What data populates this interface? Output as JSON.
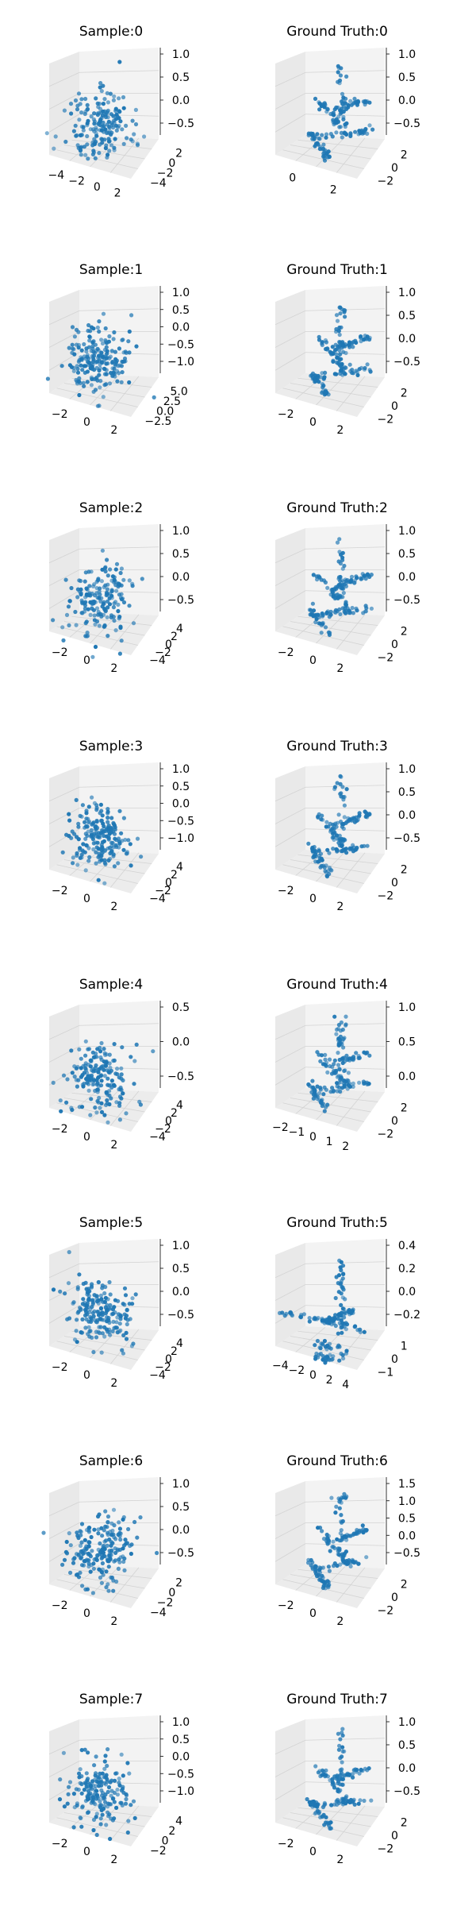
{
  "colors": {
    "point": "#1f77b4",
    "pane_left": "#e9e9e9",
    "pane_right": "#f3f3f3",
    "pane_floor": "#ececec",
    "grid": "#d3d3d3",
    "tick_text": "#000000"
  },
  "chart_data": [
    {
      "type": "scatter3d",
      "title": "Sample:0",
      "ztick_labels": [
        "1.0",
        "0.5",
        "0.0",
        "−0.5"
      ],
      "xtick_labels": [
        "−4",
        "−2",
        "0",
        "2"
      ],
      "ytick_labels": [
        "2",
        "0",
        "−2",
        "−4"
      ],
      "point_count": 180,
      "distribution": "random_cloud"
    },
    {
      "type": "scatter3d",
      "title": "Ground Truth:0",
      "ztick_labels": [
        "1.0",
        "0.5",
        "0.0",
        "−0.5"
      ],
      "xtick_labels": [
        "0",
        "2"
      ],
      "ytick_labels": [
        "2",
        "0",
        "−2"
      ],
      "point_count": 160,
      "distribution": "skeleton"
    },
    {
      "type": "scatter3d",
      "title": "Sample:1",
      "ztick_labels": [
        "1.0",
        "0.5",
        "0.0",
        "−0.5",
        "−1.0"
      ],
      "xtick_labels": [
        "−2",
        "0",
        "2"
      ],
      "ytick_labels": [
        "5.0",
        "2.5",
        "0.0",
        "−2.5"
      ],
      "point_count": 200,
      "distribution": "random_cloud"
    },
    {
      "type": "scatter3d",
      "title": "Ground Truth:1",
      "ztick_labels": [
        "1.0",
        "0.5",
        "0.0",
        "−0.5"
      ],
      "xtick_labels": [
        "−2",
        "0",
        "2"
      ],
      "ytick_labels": [
        "2",
        "0",
        "−2"
      ],
      "point_count": 160,
      "distribution": "skeleton"
    },
    {
      "type": "scatter3d",
      "title": "Sample:2",
      "ztick_labels": [
        "1.0",
        "0.5",
        "0.0",
        "−0.5"
      ],
      "xtick_labels": [
        "−2",
        "0",
        "2"
      ],
      "ytick_labels": [
        "4",
        "2",
        "0",
        "−2",
        "−4"
      ],
      "point_count": 180,
      "distribution": "random_cloud"
    },
    {
      "type": "scatter3d",
      "title": "Ground Truth:2",
      "ztick_labels": [
        "1.0",
        "0.5",
        "0.0",
        "−0.5"
      ],
      "xtick_labels": [
        "−2",
        "0",
        "2"
      ],
      "ytick_labels": [
        "2",
        "0",
        "−2"
      ],
      "point_count": 160,
      "distribution": "skeleton"
    },
    {
      "type": "scatter3d",
      "title": "Sample:3",
      "ztick_labels": [
        "1.0",
        "0.5",
        "0.0",
        "−0.5",
        "−1.0"
      ],
      "xtick_labels": [
        "−2",
        "0",
        "2"
      ],
      "ytick_labels": [
        "4",
        "2",
        "0",
        "−2",
        "−4"
      ],
      "point_count": 200,
      "distribution": "random_cloud"
    },
    {
      "type": "scatter3d",
      "title": "Ground Truth:3",
      "ztick_labels": [
        "1.0",
        "0.5",
        "0.0",
        "−0.5"
      ],
      "xtick_labels": [
        "−2",
        "0",
        "2"
      ],
      "ytick_labels": [
        "2",
        "0",
        "−2"
      ],
      "point_count": 160,
      "distribution": "skeleton"
    },
    {
      "type": "scatter3d",
      "title": "Sample:4",
      "ztick_labels": [
        "0.5",
        "0.0",
        "−0.5"
      ],
      "xtick_labels": [
        "−2",
        "0",
        "2"
      ],
      "ytick_labels": [
        "4",
        "2",
        "0",
        "−2",
        "−4"
      ],
      "point_count": 180,
      "distribution": "random_cloud"
    },
    {
      "type": "scatter3d",
      "title": "Ground Truth:4",
      "ztick_labels": [
        "1.0",
        "0.5",
        "0.0"
      ],
      "xtick_labels": [
        "−2",
        "−1",
        "0",
        "1",
        "2"
      ],
      "ytick_labels": [
        "2",
        "0",
        "−2"
      ],
      "point_count": 160,
      "distribution": "skeleton"
    },
    {
      "type": "scatter3d",
      "title": "Sample:5",
      "ztick_labels": [
        "1.0",
        "0.5",
        "0.0",
        "−0.5"
      ],
      "xtick_labels": [
        "−2",
        "0",
        "2"
      ],
      "ytick_labels": [
        "4",
        "2",
        "0",
        "−2",
        "−4"
      ],
      "point_count": 200,
      "distribution": "random_cloud"
    },
    {
      "type": "scatter3d",
      "title": "Ground Truth:5",
      "ztick_labels": [
        "0.4",
        "0.2",
        "0.0",
        "−0.2"
      ],
      "xtick_labels": [
        "−4",
        "−2",
        "0",
        "2",
        "4"
      ],
      "ytick_labels": [
        "1",
        "0",
        "−1"
      ],
      "point_count": 170,
      "distribution": "skeleton_wide"
    },
    {
      "type": "scatter3d",
      "title": "Sample:6",
      "ztick_labels": [
        "1.0",
        "0.5",
        "0.0",
        "−0.5"
      ],
      "xtick_labels": [
        "−2",
        "0",
        "2"
      ],
      "ytick_labels": [
        "2",
        "0",
        "−2",
        "−4"
      ],
      "point_count": 200,
      "distribution": "random_cloud"
    },
    {
      "type": "scatter3d",
      "title": "Ground Truth:6",
      "ztick_labels": [
        "1.5",
        "1.0",
        "0.5",
        "0.0",
        "−0.5"
      ],
      "xtick_labels": [
        "−2",
        "0",
        "2"
      ],
      "ytick_labels": [
        "2",
        "0",
        "−2"
      ],
      "point_count": 160,
      "distribution": "skeleton"
    },
    {
      "type": "scatter3d",
      "title": "Sample:7",
      "ztick_labels": [
        "1.0",
        "0.5",
        "0.0",
        "−0.5",
        "−1.0"
      ],
      "xtick_labels": [
        "−2",
        "0",
        "2"
      ],
      "ytick_labels": [
        "4",
        "2",
        "0",
        "−2"
      ],
      "point_count": 180,
      "distribution": "random_cloud"
    },
    {
      "type": "scatter3d",
      "title": "Ground Truth:7",
      "ztick_labels": [
        "1.0",
        "0.5",
        "0.0",
        "−0.5"
      ],
      "xtick_labels": [
        "−2",
        "0",
        "2"
      ],
      "ytick_labels": [
        "2",
        "0",
        "−2"
      ],
      "point_count": 160,
      "distribution": "skeleton"
    }
  ]
}
